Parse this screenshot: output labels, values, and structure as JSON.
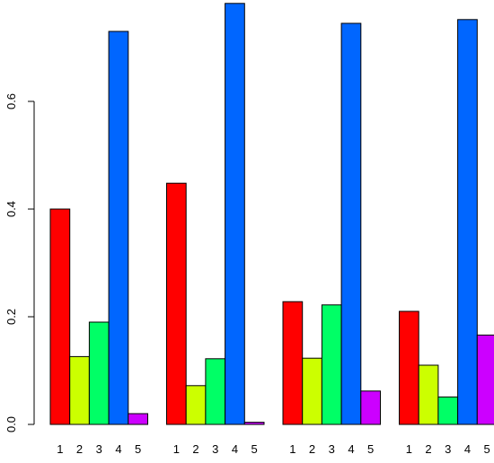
{
  "chart_data": {
    "type": "bar",
    "layout": "grouped",
    "groups": 4,
    "series": [
      {
        "name": "1",
        "color": "#FF0000",
        "values": [
          0.4,
          0.448,
          0.228,
          0.21
        ]
      },
      {
        "name": "2",
        "color": "#CCFF00",
        "values": [
          0.126,
          0.072,
          0.123,
          0.11
        ]
      },
      {
        "name": "3",
        "color": "#00FF66",
        "values": [
          0.19,
          0.122,
          0.222,
          0.051
        ]
      },
      {
        "name": "4",
        "color": "#0066FF",
        "values": [
          0.73,
          0.782,
          0.745,
          0.752
        ]
      },
      {
        "name": "5",
        "color": "#CC00FF",
        "values": [
          0.02,
          0.004,
          0.062,
          0.166
        ]
      }
    ],
    "bar_labels": [
      "1",
      "2",
      "3",
      "4",
      "5"
    ],
    "yaxis": {
      "ticks": [
        0.0,
        0.2,
        0.4,
        0.6
      ],
      "tick_labels": [
        "0.0",
        "0.2",
        "0.4",
        "0.6"
      ]
    },
    "ylim": [
      0,
      0.8
    ],
    "title": "",
    "xlabel": "",
    "ylabel": "",
    "grid": false,
    "legend": "none"
  }
}
